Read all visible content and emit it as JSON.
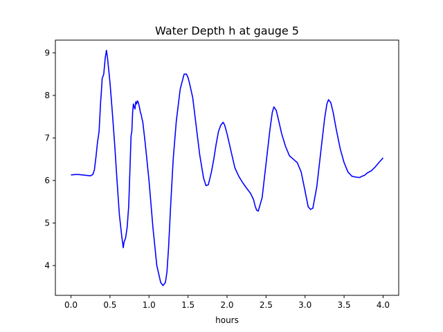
{
  "chart_data": {
    "type": "line",
    "title": "Water Depth h at gauge 5",
    "xlabel": "hours",
    "ylabel": "",
    "xlim": [
      -0.2,
      4.2
    ],
    "ylim": [
      3.3,
      9.3
    ],
    "xticks": [
      0.0,
      0.5,
      1.0,
      1.5,
      2.0,
      2.5,
      3.0,
      3.5,
      4.0
    ],
    "xtick_labels": [
      "0.0",
      "0.5",
      "1.0",
      "1.5",
      "2.0",
      "2.5",
      "3.0",
      "3.5",
      "4.0"
    ],
    "yticks": [
      4,
      5,
      6,
      7,
      8,
      9
    ],
    "ytick_labels": [
      "4",
      "5",
      "6",
      "7",
      "8",
      "9"
    ],
    "grid": false,
    "legend": "none",
    "series": [
      {
        "color": "#0000ff",
        "x": [
          0.0,
          0.05,
          0.1,
          0.15,
          0.2,
          0.25,
          0.28,
          0.3,
          0.32,
          0.34,
          0.36,
          0.37,
          0.38,
          0.39,
          0.4,
          0.42,
          0.44,
          0.455,
          0.47,
          0.5,
          0.53,
          0.56,
          0.59,
          0.62,
          0.65,
          0.67,
          0.68,
          0.69,
          0.7,
          0.72,
          0.74,
          0.76,
          0.77,
          0.78,
          0.79,
          0.8,
          0.81,
          0.82,
          0.83,
          0.84,
          0.85,
          0.86,
          0.87,
          0.88,
          0.89,
          0.9,
          0.91,
          0.92,
          0.95,
          1.0,
          1.05,
          1.1,
          1.15,
          1.18,
          1.21,
          1.23,
          1.25,
          1.28,
          1.31,
          1.35,
          1.4,
          1.45,
          1.48,
          1.5,
          1.52,
          1.56,
          1.6,
          1.65,
          1.7,
          1.73,
          1.76,
          1.78,
          1.8,
          1.83,
          1.86,
          1.89,
          1.92,
          1.95,
          1.97,
          2.0,
          2.05,
          2.1,
          2.15,
          2.2,
          2.25,
          2.3,
          2.34,
          2.36,
          2.38,
          2.4,
          2.45,
          2.5,
          2.55,
          2.58,
          2.6,
          2.63,
          2.66,
          2.7,
          2.75,
          2.8,
          2.85,
          2.9,
          2.95,
          3.0,
          3.04,
          3.07,
          3.1,
          3.15,
          3.2,
          3.25,
          3.28,
          3.3,
          3.33,
          3.36,
          3.4,
          3.45,
          3.5,
          3.55,
          3.6,
          3.65,
          3.7,
          3.73,
          3.76,
          3.8,
          3.85,
          3.9,
          3.95,
          4.0
        ],
        "y": [
          6.13,
          6.14,
          6.14,
          6.13,
          6.12,
          6.11,
          6.14,
          6.25,
          6.55,
          6.9,
          7.15,
          7.5,
          7.85,
          8.1,
          8.4,
          8.5,
          8.9,
          9.06,
          8.85,
          8.3,
          7.6,
          6.85,
          6.0,
          5.2,
          4.7,
          4.42,
          4.55,
          4.6,
          4.65,
          4.9,
          5.4,
          6.5,
          7.05,
          7.15,
          7.6,
          7.8,
          7.73,
          7.68,
          7.85,
          7.8,
          7.87,
          7.85,
          7.78,
          7.7,
          7.6,
          7.55,
          7.45,
          7.38,
          6.9,
          6.0,
          4.9,
          4.0,
          3.6,
          3.53,
          3.6,
          3.85,
          4.4,
          5.5,
          6.5,
          7.4,
          8.15,
          8.5,
          8.5,
          8.42,
          8.28,
          7.95,
          7.35,
          6.6,
          6.05,
          5.88,
          5.9,
          6.05,
          6.2,
          6.5,
          6.85,
          7.15,
          7.3,
          7.37,
          7.3,
          7.1,
          6.7,
          6.3,
          6.1,
          5.95,
          5.82,
          5.7,
          5.55,
          5.4,
          5.3,
          5.28,
          5.6,
          6.4,
          7.2,
          7.6,
          7.73,
          7.65,
          7.42,
          7.1,
          6.8,
          6.58,
          6.5,
          6.42,
          6.2,
          5.75,
          5.38,
          5.32,
          5.35,
          5.85,
          6.65,
          7.45,
          7.8,
          7.9,
          7.83,
          7.6,
          7.2,
          6.75,
          6.42,
          6.2,
          6.1,
          6.08,
          6.07,
          6.1,
          6.12,
          6.18,
          6.23,
          6.32,
          6.43,
          6.53
        ]
      }
    ]
  }
}
